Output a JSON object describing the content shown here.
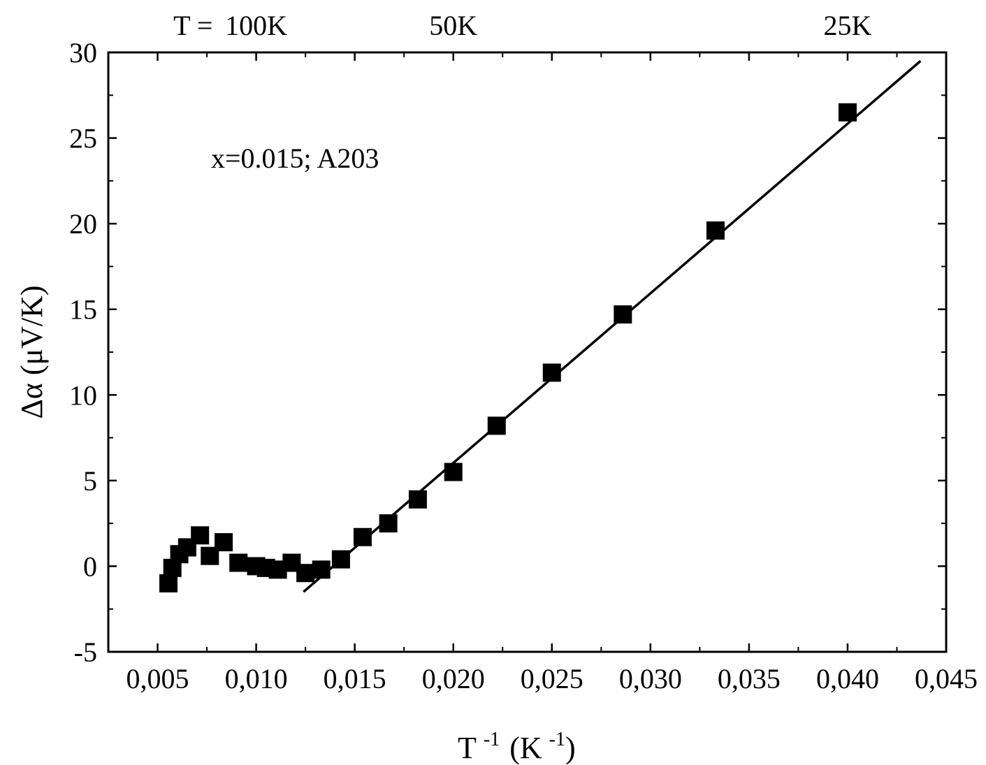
{
  "chart_data": {
    "type": "scatter",
    "xlabel": "T",
    "xlabel_sup1": "-1",
    "xlabel_mid": "(K",
    "xlabel_sup2": "-1",
    "xlabel_end": ")",
    "ylabel": "Δα (μV/K)",
    "annotation": "x=0.015; A203",
    "xlim": [
      0.0025,
      0.045
    ],
    "ylim": [
      -5,
      30
    ],
    "x_ticks": [
      0.005,
      0.01,
      0.015,
      0.02,
      0.025,
      0.03,
      0.035,
      0.04,
      0.045
    ],
    "x_tick_labels": [
      "0,005",
      "0,010",
      "0,015",
      "0,020",
      "0,025",
      "0,030",
      "0,035",
      "0,040",
      "0,045"
    ],
    "y_ticks": [
      -5,
      0,
      5,
      10,
      15,
      20,
      25,
      30
    ],
    "y_tick_labels": [
      "-5",
      "0",
      "5",
      "10",
      "15",
      "20",
      "25",
      "30"
    ],
    "top_axis_labels": [
      {
        "text": "T =",
        "x": 0.0068
      },
      {
        "text": "100K",
        "x": 0.01
      },
      {
        "text": "50K",
        "x": 0.02
      },
      {
        "text": "25K",
        "x": 0.04
      }
    ],
    "grid": false,
    "series": [
      {
        "marker": "square",
        "color": "#000000",
        "x": [
          0.00555,
          0.00575,
          0.0061,
          0.0065,
          0.00715,
          0.00765,
          0.00835,
          0.0091,
          0.01,
          0.0105,
          0.0111,
          0.0118,
          0.0125,
          0.0133,
          0.0143,
          0.0154,
          0.0167,
          0.0182,
          0.02,
          0.0222,
          0.025,
          0.0286,
          0.0333,
          0.04
        ],
        "y": [
          -1.0,
          -0.1,
          0.7,
          1.1,
          1.8,
          0.6,
          1.4,
          0.2,
          0.0,
          -0.1,
          -0.2,
          0.2,
          -0.4,
          -0.2,
          0.4,
          1.7,
          2.5,
          3.9,
          5.5,
          8.2,
          11.3,
          14.7,
          19.6,
          26.5
        ]
      },
      {
        "type": "line",
        "color": "#000000",
        "x": [
          0.0124,
          0.0437
        ],
        "y": [
          -1.5,
          29.5
        ]
      }
    ]
  }
}
